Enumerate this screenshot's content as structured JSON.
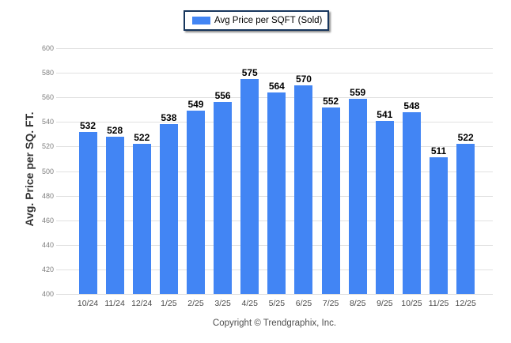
{
  "legend": {
    "label": "Avg Price per SQFT (Sold)"
  },
  "footer": {
    "text": "Copyright © Trendgraphix, Inc."
  },
  "chart_data": {
    "type": "bar",
    "title": "Avg Price per SQFT (Sold)",
    "categories": [
      "10/24",
      "11/24",
      "12/24",
      "1/25",
      "2/25",
      "3/25",
      "4/25",
      "5/25",
      "6/25",
      "7/25",
      "8/25",
      "9/25",
      "10/25",
      "11/25",
      "12/25"
    ],
    "values": [
      532,
      528,
      522,
      538,
      549,
      556,
      575,
      564,
      570,
      552,
      559,
      541,
      548,
      511,
      522
    ],
    "xlabel": "",
    "ylabel": "Avg. Price per SQ. FT.",
    "ylim": [
      400,
      600
    ],
    "ytick_step": 20,
    "grid": true,
    "legend_position": "top",
    "bar_color": "#4285F4",
    "legend_border_color": "#17365d"
  }
}
